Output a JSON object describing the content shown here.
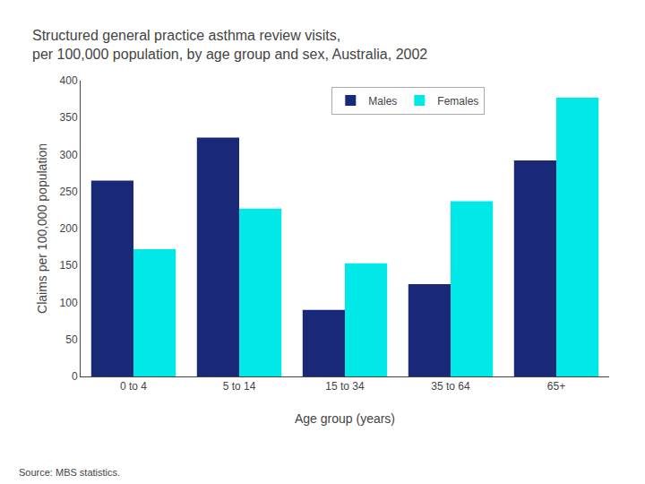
{
  "chart_data": {
    "type": "bar",
    "title": "Structured general practice asthma review visits,",
    "subtitle": "per 100,000 population, by age group and sex, Australia, 2002",
    "categories": [
      "0 to 4",
      "5 to 14",
      "15 to 34",
      "35 to 64",
      "65+"
    ],
    "series": [
      {
        "name": "Males",
        "color": "#1a2878",
        "values": [
          265,
          323,
          90,
          125,
          292
        ]
      },
      {
        "name": "Females",
        "color": "#00e8e8",
        "values": [
          172,
          227,
          153,
          237,
          377
        ]
      }
    ],
    "ylabel": "Claims per 100,000 population",
    "xlabel": "Age group (years)",
    "ylim": [
      0,
      400
    ],
    "yticks": [
      0,
      50,
      100,
      150,
      200,
      250,
      300,
      350,
      400
    ],
    "annotations": [
      "Source: MBS statistics."
    ],
    "grid": false,
    "legend": "top",
    "data_labels": false
  }
}
